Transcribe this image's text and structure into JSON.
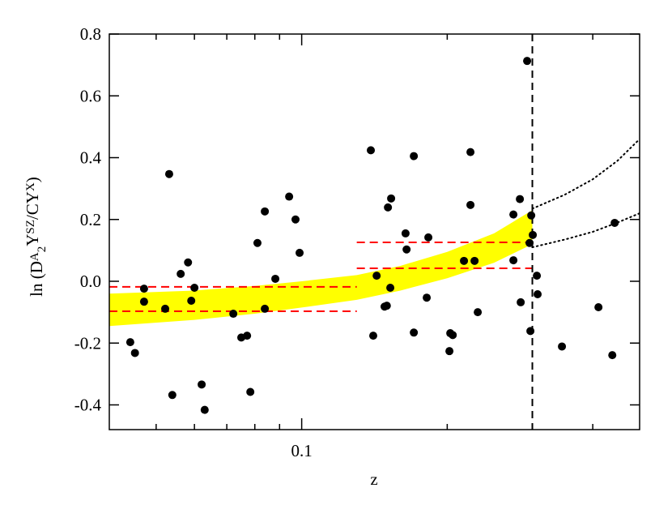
{
  "chart_data": {
    "type": "scatter",
    "xlabel": "z",
    "ylabel_parts": [
      "ln (D",
      "A",
      "2",
      "Y",
      "SZ",
      "/CY",
      "X",
      ")"
    ],
    "xscale": "log",
    "xlim": [
      0.04,
      0.5
    ],
    "ylim": [
      -0.48,
      0.8
    ],
    "xticks": [
      0.1
    ],
    "xminorticks": [
      0.05,
      0.06,
      0.07,
      0.08,
      0.09,
      0.2,
      0.3,
      0.4
    ],
    "yticks": [
      -0.4,
      -0.2,
      {
        "value": 0,
        "label": "0.0"
      },
      0.2,
      0.4,
      0.6,
      0.8
    ],
    "series": [
      {
        "color": "#000000",
        "x": [
          0.0442,
          0.0452,
          0.0472,
          0.0472,
          0.0532,
          0.0522,
          0.054,
          0.0562,
          0.0582,
          0.0591,
          0.06,
          0.0621,
          0.063,
          0.0722,
          0.075,
          0.0771,
          0.0783,
          0.081,
          0.0839,
          0.0839,
          0.0882,
          0.0942,
          0.0971,
          0.099,
          0.1406,
          0.139,
          0.1429,
          0.1484,
          0.15,
          0.1508,
          0.1525,
          0.1531,
          0.164,
          0.1648,
          0.1706,
          0.1706,
          0.1814,
          0.1828,
          0.2021,
          0.2029,
          0.2053,
          0.2166,
          0.2234,
          0.2234,
          0.2278,
          0.2313,
          0.2741,
          0.2741,
          0.2838,
          0.2827,
          0.2926,
          0.2972,
          0.296,
          0.2984,
          0.3006,
          0.3065,
          0.3076,
          0.3454,
          0.411,
          0.439,
          0.444
        ],
        "values": [
          -0.197,
          -0.232,
          -0.024,
          -0.066,
          0.347,
          -0.089,
          -0.368,
          0.024,
          0.061,
          -0.063,
          -0.021,
          -0.334,
          -0.416,
          -0.105,
          -0.182,
          -0.176,
          -0.358,
          0.124,
          0.226,
          -0.089,
          0.008,
          0.274,
          0.2,
          0.092,
          -0.176,
          0.424,
          0.018,
          -0.082,
          -0.079,
          0.239,
          -0.021,
          0.268,
          0.155,
          0.103,
          -0.166,
          0.405,
          -0.053,
          0.142,
          -0.226,
          -0.168,
          -0.174,
          0.066,
          0.418,
          0.247,
          0.066,
          -0.1,
          0.216,
          0.068,
          -0.068,
          0.266,
          0.713,
          -0.161,
          0.124,
          0.213,
          0.15,
          0.018,
          -0.042,
          -0.211,
          -0.084,
          -0.239,
          0.189
        ]
      }
    ],
    "band": {
      "color": "#ffff00",
      "x": [
        0.04,
        0.06,
        0.08,
        0.1,
        0.13,
        0.16,
        0.2,
        0.25,
        0.3
      ],
      "upper": [
        -0.04,
        -0.03,
        -0.015,
        0.0,
        0.02,
        0.05,
        0.095,
        0.155,
        0.23
      ],
      "lower": [
        -0.145,
        -0.125,
        -0.105,
        -0.085,
        -0.06,
        -0.03,
        0.01,
        0.06,
        0.12
      ]
    },
    "extrapolation": {
      "color": "#000000",
      "x": [
        0.3,
        0.35,
        0.4,
        0.45,
        0.5
      ],
      "upper": [
        0.235,
        0.28,
        0.33,
        0.39,
        0.46
      ],
      "lower": [
        0.11,
        0.135,
        0.16,
        0.19,
        0.22
      ]
    },
    "hlines": {
      "color": "#ff0000",
      "segments": [
        {
          "x": [
            0.04,
            0.13
          ],
          "y": -0.018
        },
        {
          "x": [
            0.04,
            0.13
          ],
          "y": -0.097
        },
        {
          "x": [
            0.13,
            0.3
          ],
          "y": 0.126
        },
        {
          "x": [
            0.13,
            0.3
          ],
          "y": 0.042
        }
      ]
    },
    "vline": {
      "x": 0.3,
      "color": "#000000"
    }
  }
}
